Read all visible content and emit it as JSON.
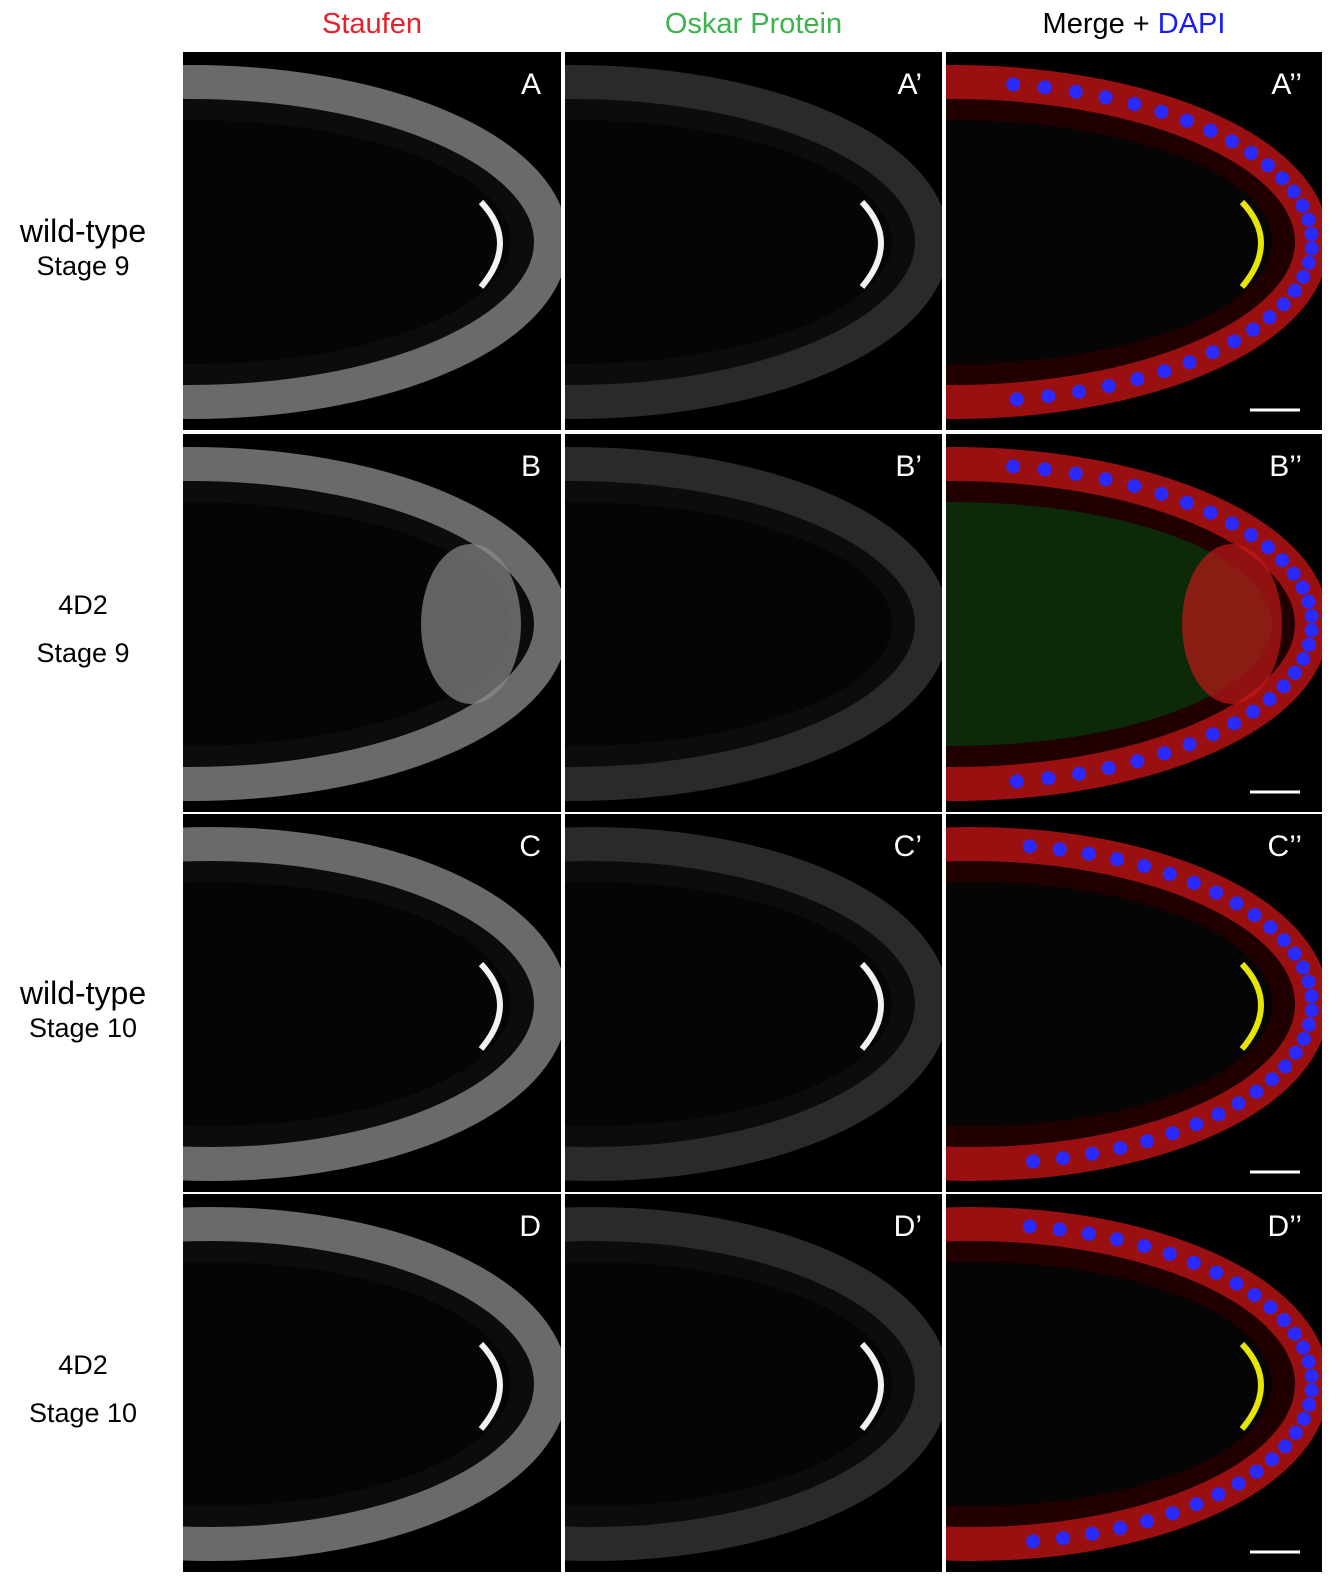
{
  "columns": [
    {
      "parts": [
        "Staufen"
      ]
    },
    {
      "parts": [
        "Oskar Protein"
      ]
    },
    {
      "parts": [
        "Merge +",
        "DAPI"
      ]
    }
  ],
  "rows": [
    {
      "label_lines": [
        "wild-type",
        "Stage 9"
      ],
      "panels": [
        "A",
        "A’",
        "A’’"
      ]
    },
    {
      "label_lines": [
        "4D2",
        "Stage 9"
      ],
      "panels": [
        "B",
        "B’",
        "B’’"
      ]
    },
    {
      "label_lines": [
        "wild-type",
        "Stage 10"
      ],
      "panels": [
        "C",
        "C’",
        "C’’"
      ]
    },
    {
      "label_lines": [
        "4D2",
        "Stage 10"
      ],
      "panels": [
        "D",
        "D’",
        "D’’"
      ]
    }
  ]
}
